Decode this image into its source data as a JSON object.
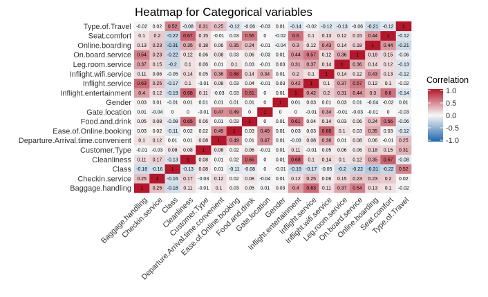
{
  "chart_data": {
    "type": "heatmap",
    "title": "Heatmap for Categorical variables",
    "xlabel": "",
    "ylabel": "",
    "variables": [
      "Baggage.handling",
      "Checkin.service",
      "Class",
      "Cleanliness",
      "Customer.Type",
      "Departure.Arrival.time.convenient",
      "Ease.of.Online.booking",
      "Food.and.drink",
      "Gate.location",
      "Gender",
      "Inflight.entertainment",
      "Inflight.service",
      "Inflight.wifi.service",
      "Leg.room.service",
      "On.board.service",
      "Online.boarding",
      "Seat.comfort",
      "Type.of.Travel"
    ],
    "matrix": [
      [
        1,
        0.25,
        -0.18,
        0.11,
        -0.01,
        0.1,
        0.03,
        0.05,
        0.01,
        0.03,
        0.4,
        0.63,
        0.11,
        0.37,
        0.54,
        0.13,
        0.1,
        -0.02
      ],
      [
        0.25,
        1,
        -0.16,
        0.17,
        -0.03,
        0.12,
        0.02,
        0.08,
        -0.04,
        0.01,
        0.12,
        0.25,
        0.06,
        0.15,
        0.23,
        0.23,
        0.2,
        0.02
      ],
      [
        -0.18,
        -0.16,
        1,
        -0.13,
        0.08,
        0.01,
        -0.11,
        -0.08,
        0,
        -0.01,
        -0.19,
        -0.17,
        -0.05,
        -0.2,
        -0.22,
        -0.31,
        -0.22,
        0.52
      ],
      [
        0.11,
        0.17,
        -0.13,
        1,
        0.08,
        0.01,
        0.02,
        0.65,
        0,
        0.01,
        0.68,
        0.1,
        0.14,
        0.1,
        0.12,
        0.35,
        0.67,
        -0.08
      ],
      [
        -0.01,
        -0.03,
        0.08,
        0.08,
        1,
        0.08,
        0.02,
        0.06,
        -0.01,
        0.01,
        0.11,
        -0.01,
        0.05,
        0.06,
        0.06,
        0.18,
        0.15,
        0.31
      ],
      [
        0.1,
        0.12,
        0.01,
        0.01,
        0.08,
        1,
        0.49,
        0.01,
        0.47,
        0.01,
        -0.03,
        0.08,
        0.36,
        0.01,
        0.08,
        0.06,
        -0.01,
        0.25
      ],
      [
        0.03,
        0.02,
        -0.11,
        0.02,
        0.02,
        0.49,
        1,
        0.03,
        0.49,
        0.01,
        0.03,
        0.03,
        0.68,
        0.1,
        0.03,
        0.35,
        0.03,
        -0.12
      ],
      [
        0.05,
        0.08,
        -0.08,
        0.65,
        0.06,
        0.01,
        0.03,
        1,
        0,
        0.01,
        0.61,
        0.04,
        0.14,
        0.03,
        0.06,
        0.24,
        0.56,
        -0.06
      ],
      [
        0.01,
        -0.04,
        0,
        0,
        -0.01,
        0.47,
        0.49,
        0,
        1,
        0,
        0,
        -0.01,
        0.34,
        -0.01,
        -0.03,
        -0.01,
        0,
        -0.03
      ],
      [
        0.03,
        0.01,
        -0.01,
        0.01,
        0.01,
        0.01,
        0.01,
        0.01,
        0,
        1,
        0.01,
        0.03,
        0.01,
        0.03,
        0.01,
        -0.04,
        -0.02,
        0.01
      ],
      [
        0.4,
        0.12,
        -0.19,
        0.68,
        0.11,
        -0.03,
        0.03,
        0.61,
        0,
        0.01,
        1,
        0.42,
        0.2,
        0.31,
        0.44,
        0.3,
        0.6,
        -0.14
      ],
      [
        0.63,
        0.25,
        -0.17,
        0.1,
        -0.01,
        0.08,
        0.03,
        0.04,
        -0.01,
        0.03,
        0.42,
        1,
        0.1,
        0.37,
        0.57,
        0.12,
        0.1,
        -0.02
      ],
      [
        0.11,
        0.06,
        -0.05,
        0.14,
        0.05,
        0.36,
        0.68,
        0.14,
        0.34,
        0.01,
        0.2,
        0.1,
        1,
        0.14,
        0.12,
        0.43,
        0.13,
        -0.12
      ],
      [
        0.37,
        0.15,
        -0.2,
        0.1,
        0.06,
        0.01,
        0.1,
        0.03,
        -0.01,
        0.03,
        0.31,
        0.37,
        0.14,
        1,
        0.36,
        0.14,
        0.12,
        -0.13
      ],
      [
        0.54,
        0.23,
        -0.22,
        0.12,
        0.06,
        0.08,
        0.03,
        0.06,
        -0.03,
        0.01,
        0.44,
        0.57,
        0.12,
        0.36,
        1,
        0.18,
        0.15,
        -0.06
      ],
      [
        0.13,
        0.23,
        -0.31,
        0.35,
        0.18,
        0.06,
        0.35,
        0.24,
        -0.01,
        -0.04,
        0.3,
        0.12,
        0.43,
        0.14,
        0.18,
        1,
        0.44,
        -0.21
      ],
      [
        0.1,
        0.2,
        -0.22,
        0.67,
        0.15,
        -0.01,
        0.03,
        0.56,
        0,
        -0.02,
        0.6,
        0.1,
        0.13,
        0.12,
        0.15,
        0.44,
        1,
        -0.12
      ],
      [
        -0.02,
        0.02,
        0.52,
        -0.08,
        0.31,
        0.25,
        -0.12,
        -0.06,
        -0.03,
        0.01,
        -0.14,
        -0.02,
        -0.12,
        -0.13,
        -0.06,
        -0.21,
        -0.12,
        1
      ]
    ],
    "value_range": [
      -1,
      1
    ],
    "colors": {
      "low": "#2166ac",
      "mid": "#f7f7f7",
      "high": "#b2182b"
    },
    "legend": {
      "title": "Correlation",
      "position": "right",
      "ticks": [
        "1.0",
        "0.5",
        "0.0",
        "-0.5",
        "-1.0"
      ]
    },
    "grid": false
  }
}
